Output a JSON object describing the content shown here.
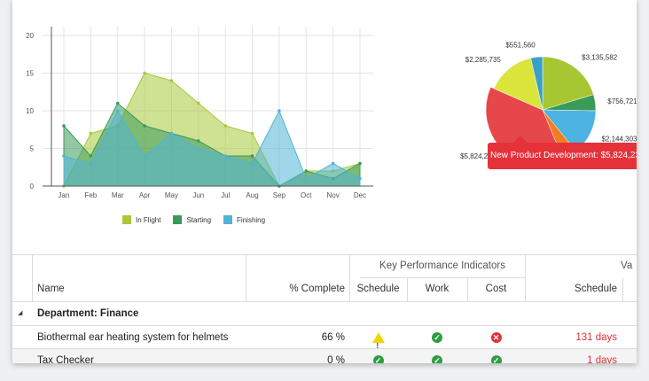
{
  "chart_data": [
    {
      "type": "area",
      "categories": [
        "Jan",
        "Feb",
        "Mar",
        "Apr",
        "May",
        "Jun",
        "Jul",
        "Aug",
        "Sep",
        "Oct",
        "Nov",
        "Dec"
      ],
      "ylim": [
        0,
        20
      ],
      "yticks": [
        0,
        5,
        10,
        15,
        20
      ],
      "series": [
        {
          "name": "In Flight",
          "color": "#a8c838",
          "values": [
            0,
            7,
            8,
            15,
            14,
            11,
            8,
            7,
            0,
            2,
            2,
            3
          ]
        },
        {
          "name": "Starting",
          "color": "#3a9a5a",
          "values": [
            8,
            4,
            11,
            8,
            7,
            6,
            4,
            4,
            0,
            2,
            1,
            3
          ]
        },
        {
          "name": "Finishing",
          "color": "#50b4d6",
          "values": [
            4,
            3,
            10,
            4,
            7,
            5,
            4,
            3,
            10,
            1,
            3,
            1
          ]
        }
      ]
    },
    {
      "type": "pie",
      "slices": [
        {
          "label": "$3,135,582",
          "value": 3135582,
          "color": "#a6c632"
        },
        {
          "label": "$756,721",
          "value": 756721,
          "color": "#3a9a5a"
        },
        {
          "label": "$2,144,303",
          "value": 2144303,
          "color": "#4cb3e2"
        },
        {
          "label": "",
          "value": 700000,
          "color": "#f47d20"
        },
        {
          "label": "$5,824,236",
          "value": 5824236,
          "color": "#e6474b"
        },
        {
          "label": "$2,285,735",
          "value": 2285735,
          "color": "#dbe53c"
        },
        {
          "label": "$551,560",
          "value": 551560,
          "color": "#38a0c6"
        }
      ]
    }
  ],
  "tooltip": {
    "text": "New Product Development: $5,824,236"
  },
  "grid": {
    "group_header_kpi": "Key Performance Indicators",
    "group_header_variance": "Va",
    "columns": {
      "name": "Name",
      "complete": "% Complete",
      "schedule": "Schedule",
      "work": "Work",
      "cost": "Cost",
      "var_schedule": "Schedule"
    },
    "group_row": {
      "toggle": "◢",
      "label": "Department: Finance"
    },
    "rows": [
      {
        "name": "Biothermal ear heating system for helmets",
        "complete": "66 %",
        "var_schedule": "131 days"
      },
      {
        "name": "Tax Checker",
        "complete": "0 %",
        "var_schedule": "1 days"
      }
    ]
  }
}
